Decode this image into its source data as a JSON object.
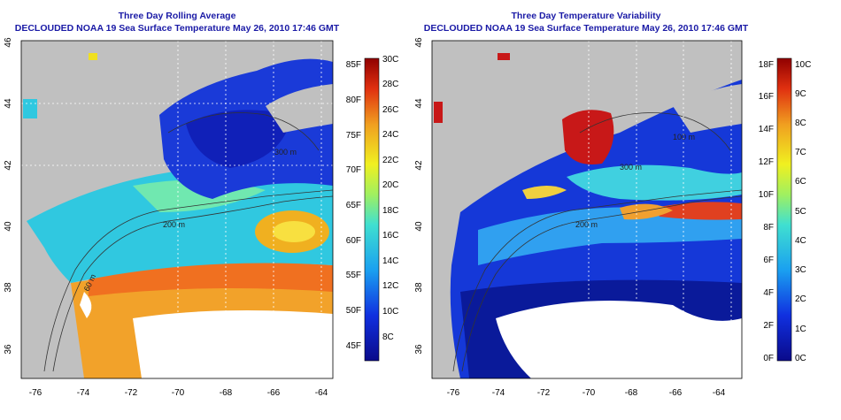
{
  "left_panel": {
    "title": "Three Day Rolling Average",
    "subtitle": "DECLOUDED NOAA 19 Sea Surface Temperature May 26, 2010 17:46 GMT",
    "colorbar_f": [
      "85F",
      "80F",
      "75F",
      "70F",
      "65F",
      "60F",
      "55F",
      "50F",
      "45F"
    ],
    "colorbar_c": [
      "30C",
      "28C",
      "26C",
      "24C",
      "22C",
      "20C",
      "18C",
      "16C",
      "14C",
      "12C",
      "10C",
      "8C"
    ],
    "contour_labels": [
      "200 m",
      "60 m",
      "300 m"
    ]
  },
  "right_panel": {
    "title": "Three Day Temperature Variability",
    "subtitle": "DECLOUDED NOAA 19 Sea Surface Temperature May 26, 2010 17:46 GMT",
    "colorbar_f": [
      "18F",
      "16F",
      "14F",
      "12F",
      "10F",
      "8F",
      "6F",
      "4F",
      "2F",
      "0F"
    ],
    "colorbar_c": [
      "10C",
      "9C",
      "8C",
      "7C",
      "6C",
      "5C",
      "4C",
      "3C",
      "2C",
      "1C",
      "0C"
    ],
    "contour_labels": [
      "200 m",
      "300 m",
      "100 m"
    ]
  },
  "axes": {
    "lon_ticks": [
      "-76",
      "-74",
      "-72",
      "-70",
      "-68",
      "-66",
      "-64"
    ],
    "lat_ticks": [
      "46",
      "44",
      "42",
      "40",
      "38",
      "36"
    ]
  },
  "colors": {
    "land": "#c0c0c0",
    "title": "#1a1aa6",
    "cold": "#1a2fd0",
    "warm": "#f0a020",
    "variability_high": "#c01010"
  }
}
